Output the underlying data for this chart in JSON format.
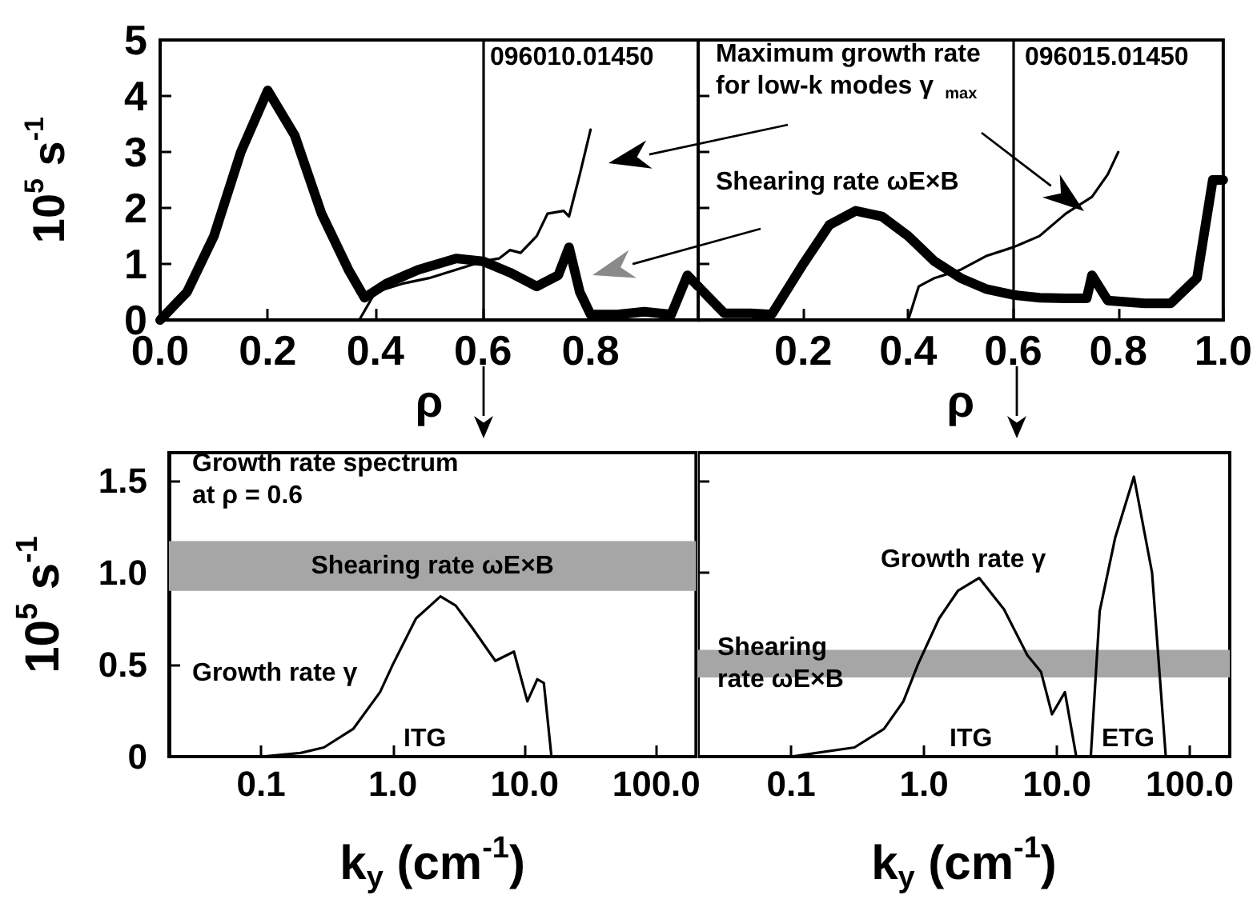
{
  "chart_data": [
    {
      "type": "line",
      "xlabel": "ρ",
      "ylabel": "10$^{5}$ s$^{-1}$",
      "xlim": [
        0,
        1
      ],
      "xticks": [
        {
          "value": 0,
          "label": "0.0"
        },
        {
          "value": 0.2,
          "label": "0.2"
        },
        {
          "value": 0.4,
          "label": "0.4"
        },
        {
          "value": 0.6,
          "label": "0.6"
        },
        {
          "value": 0.8,
          "label": "0.8"
        }
      ],
      "ylim": [
        0,
        5
      ],
      "yticks": [
        0,
        1,
        2,
        3,
        4,
        5
      ],
      "annotations": [
        "096010.01450"
      ],
      "ref_lines": [
        {
          "axis": "x",
          "value": 0.6,
          "color": "#000000"
        }
      ],
      "series": [
        {
          "color": "#000000",
          "x": [
            0,
            0.05,
            0.1,
            0.15,
            0.2,
            0.25,
            0.3,
            0.35,
            0.38,
            0.42,
            0.48,
            0.55,
            0.6,
            0.65,
            0.7,
            0.74,
            0.76,
            0.78,
            0.8,
            0.85,
            0.9,
            0.95,
            0.98,
            1.0
          ],
          "values": [
            0,
            0.5,
            1.5,
            3.0,
            4.1,
            3.3,
            1.9,
            0.9,
            0.4,
            0.65,
            0.9,
            1.1,
            1.05,
            0.85,
            0.6,
            0.8,
            1.3,
            0.5,
            0.1,
            0.1,
            0.15,
            0.1,
            0.8,
            0.6
          ]
        },
        {
          "color": "#000000",
          "x": [
            0.37,
            0.4,
            0.45,
            0.5,
            0.55,
            0.6,
            0.63,
            0.65,
            0.67,
            0.7,
            0.72,
            0.75,
            0.76,
            0.78,
            0.8
          ],
          "values": [
            0,
            0.5,
            0.65,
            0.75,
            0.9,
            1.05,
            1.1,
            1.25,
            1.2,
            1.5,
            1.9,
            1.95,
            1.85,
            2.6,
            3.4
          ]
        }
      ]
    },
    {
      "type": "line",
      "xlabel": "ρ",
      "xlim": [
        0,
        1
      ],
      "xticks": [
        {
          "value": 0.2,
          "label": "0.2"
        },
        {
          "value": 0.4,
          "label": "0.4"
        },
        {
          "value": 0.6,
          "label": "0.6"
        },
        {
          "value": 0.8,
          "label": "0.8"
        },
        {
          "value": 1,
          "label": "1.0"
        }
      ],
      "ylim": [
        0,
        5
      ],
      "yticks": [
        0,
        1,
        2,
        3,
        4,
        5
      ],
      "tick_labels": "x",
      "annotations": [
        "096015.01450",
        "Maximum growth rate for low-k modes γ$_{max}$",
        "Shearing rate ωE×B"
      ],
      "ref_lines": [
        {
          "axis": "x",
          "value": 0.6,
          "color": "#000000"
        }
      ],
      "series": [
        {
          "color": "#000000",
          "x": [
            0,
            0.05,
            0.1,
            0.14,
            0.2,
            0.25,
            0.3,
            0.35,
            0.4,
            0.45,
            0.5,
            0.55,
            0.6,
            0.65,
            0.7,
            0.74,
            0.75,
            0.78,
            0.85,
            0.9,
            0.95,
            0.98,
            1.0
          ],
          "values": [
            0.6,
            0.12,
            0.12,
            0.1,
            1.0,
            1.7,
            1.95,
            1.85,
            1.5,
            1.05,
            0.75,
            0.55,
            0.45,
            0.4,
            0.39,
            0.39,
            0.8,
            0.35,
            0.3,
            0.3,
            0.75,
            2.5,
            2.5
          ]
        },
        {
          "color": "#000000",
          "x": [
            0.4,
            0.42,
            0.45,
            0.5,
            0.55,
            0.6,
            0.65,
            0.7,
            0.75,
            0.78,
            0.8
          ],
          "values": [
            0,
            0.6,
            0.75,
            0.9,
            1.15,
            1.3,
            1.5,
            1.9,
            2.2,
            2.6,
            3.0
          ]
        }
      ]
    },
    {
      "type": "line",
      "xlabel": "k$_{y}$ (cm$^{-1}$)",
      "ylabel": "10$^{5}$ s$^{-1}$",
      "log": "x",
      "xlim": [
        0.02,
        200
      ],
      "xticks": [
        {
          "value": 0.1,
          "label": "0.1"
        },
        {
          "value": 1,
          "label": "1.0"
        },
        {
          "value": 10,
          "label": "10.0"
        },
        {
          "value": 100,
          "label": "100.0"
        }
      ],
      "ylim": [
        0,
        1.65
      ],
      "yticks": [
        0,
        0.5,
        {
          "value": 1,
          "label": "1.0"
        },
        1.5
      ],
      "annotations": [
        "Growth rate spectrum at ρ = 0.6",
        "Growth rate γ",
        "ITG"
      ],
      "bands": [
        {
          "axis": "y",
          "from": 0.9,
          "to": 1.17,
          "label": "Shearing rate ωE×B",
          "color": "#a6a6a6"
        }
      ],
      "series": [
        {
          "color": "#000000",
          "x": [
            0.1,
            0.2,
            0.3,
            0.5,
            0.8,
            1.0,
            1.5,
            2.3,
            3,
            4,
            6,
            8.3,
            10.5,
            12.5,
            14,
            16
          ],
          "values": [
            0,
            0.02,
            0.05,
            0.15,
            0.35,
            0.5,
            0.75,
            0.87,
            0.82,
            0.7,
            0.52,
            0.57,
            0.3,
            0.42,
            0.4,
            0
          ]
        }
      ]
    },
    {
      "type": "line",
      "xlabel": "k$_{y}$ (cm$^{-1}$)",
      "log": "x",
      "xlim": [
        0.02,
        200
      ],
      "xticks": [
        {
          "value": 0.1,
          "label": "0.1"
        },
        {
          "value": 1,
          "label": "1.0"
        },
        {
          "value": 10,
          "label": "10.0"
        },
        {
          "value": 100,
          "label": "100.0"
        }
      ],
      "ylim": [
        0,
        1.65
      ],
      "yticks": [
        0,
        0.5,
        1,
        1.5
      ],
      "tick_labels": "x",
      "annotations": [
        "Growth rate γ",
        "ITG",
        "ETG"
      ],
      "bands": [
        {
          "axis": "y",
          "from": 0.43,
          "to": 0.58,
          "label": "Shearing rate ωE×B",
          "color": "#a6a6a6"
        }
      ],
      "series": [
        {
          "color": "#000000",
          "x": [
            0.1,
            0.3,
            0.5,
            0.7,
            0.9,
            1.3,
            1.8,
            2.6,
            4,
            6,
            7.6,
            9.2,
            11.5,
            14,
            16,
            18,
            21,
            27.5,
            38,
            52,
            66
          ],
          "values": [
            0,
            0.05,
            0.15,
            0.3,
            0.5,
            0.75,
            0.9,
            0.97,
            0.8,
            0.55,
            0.46,
            0.23,
            0.35,
            0,
            null,
            0,
            0.79,
            1.19,
            1.52,
            1.0,
            0
          ]
        }
      ]
    }
  ]
}
